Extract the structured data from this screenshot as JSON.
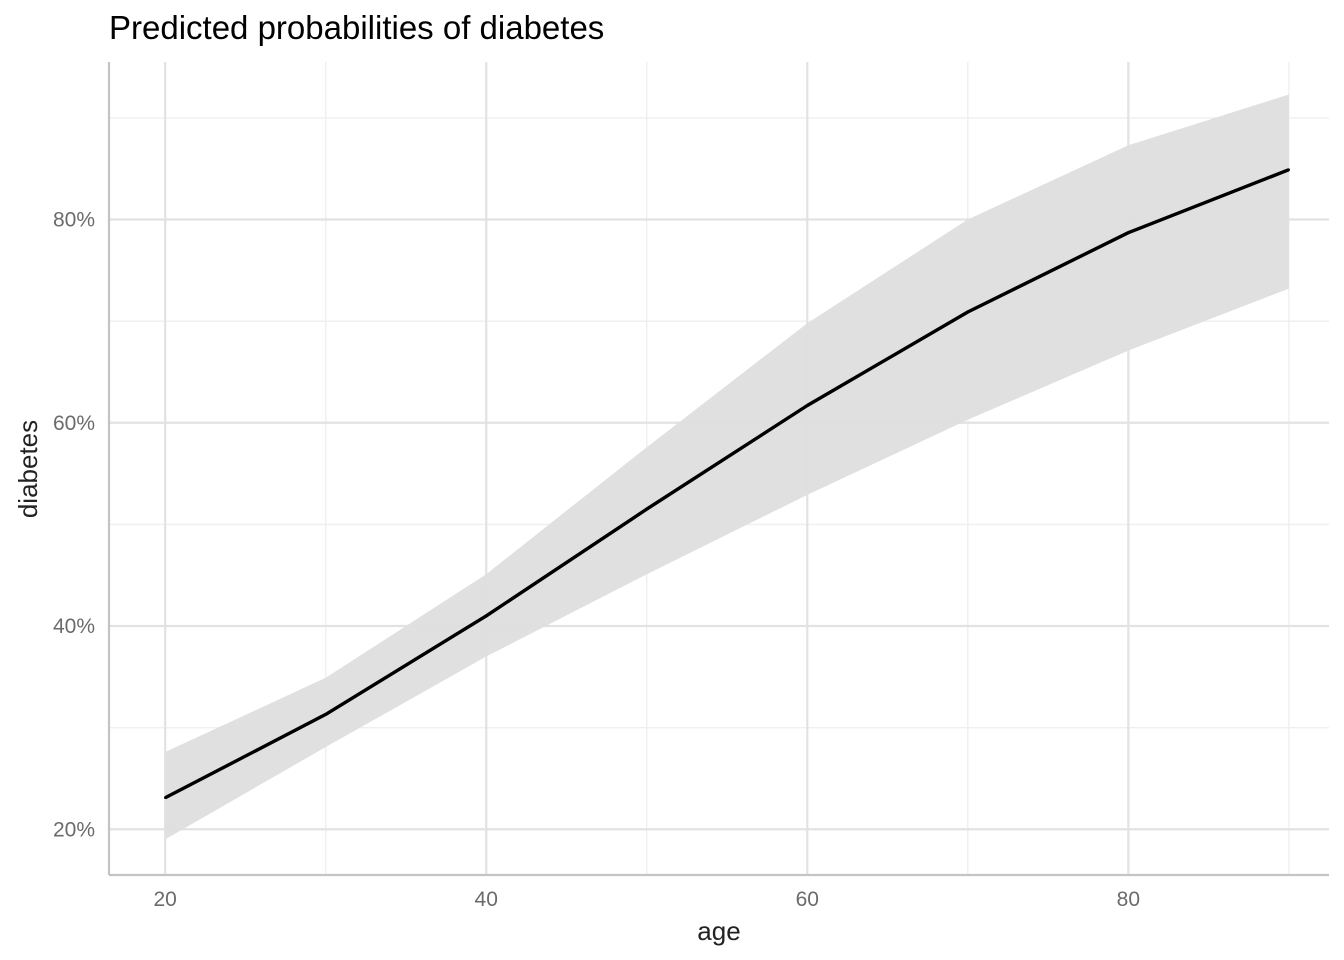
{
  "chart_data": {
    "type": "line",
    "title": "Predicted probabilities of diabetes",
    "xlabel": "age",
    "ylabel": "diabetes",
    "xlim": [
      16.5,
      92.5
    ],
    "ylim": [
      0.155,
      0.955
    ],
    "x_ticks": [
      20,
      40,
      60,
      80
    ],
    "x_tick_labels": [
      "20",
      "40",
      "60",
      "80"
    ],
    "x_minor_ticks": [
      30,
      50,
      70,
      90
    ],
    "y_ticks": [
      0.2,
      0.4,
      0.6,
      0.8
    ],
    "y_tick_labels": [
      "20%",
      "40%",
      "60%",
      "80%"
    ],
    "y_minor_ticks": [
      0.3,
      0.5,
      0.7,
      0.9
    ],
    "grid": true,
    "legend": "none",
    "series": [
      {
        "x": [
          20,
          30,
          40,
          50,
          60,
          70,
          80,
          90
        ],
        "y": [
          0.231,
          0.313,
          0.41,
          0.515,
          0.617,
          0.709,
          0.787,
          0.849
        ],
        "lower": [
          0.19,
          0.281,
          0.37,
          0.451,
          0.529,
          0.603,
          0.671,
          0.732
        ],
        "upper": [
          0.276,
          0.349,
          0.451,
          0.576,
          0.698,
          0.8,
          0.873,
          0.923
        ],
        "line_color": "#000000",
        "ribbon_color": "#dedede"
      }
    ]
  }
}
